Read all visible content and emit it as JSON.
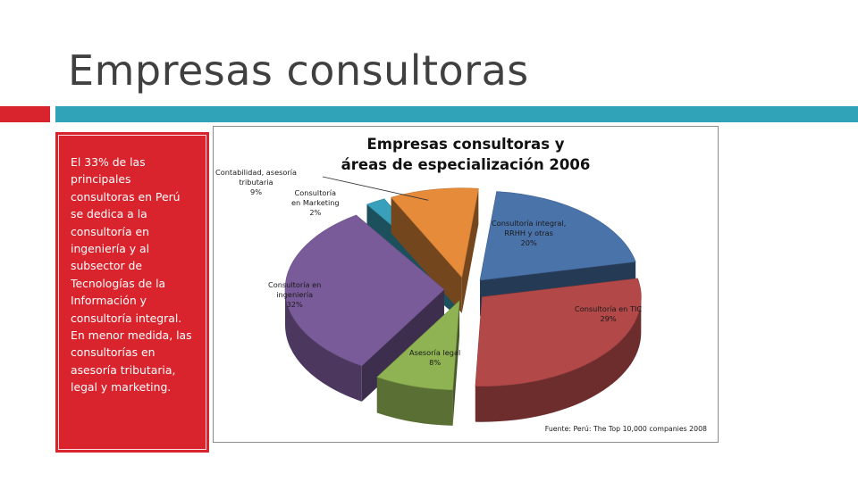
{
  "slide": {
    "title": "Empresas consultoras",
    "colors": {
      "red": "#d9242e",
      "teal": "#31a3b8"
    }
  },
  "sidebar": {
    "text": "El 33% de las principales consultoras en Perú se dedica a la consultoría en ingeniería y al subsector de Tecnologías de la Información y consultoría integral. En menor medida, las consultorías en asesoría tributaria, legal y marketing."
  },
  "chart_data": {
    "type": "pie",
    "style": "3d-exploded",
    "title": [
      "Empresas consultoras y",
      "áreas de especialización 2006"
    ],
    "source": "Fuente: Perú: The Top 10,000 companies 2008",
    "slices": [
      {
        "label": [
          "Consultoría integral,",
          "RRHH y otras"
        ],
        "pct_label": "20%",
        "value": 20,
        "color": "#4a73aa"
      },
      {
        "label": [
          "Consultoría en TIC"
        ],
        "pct_label": "29%",
        "value": 29,
        "color": "#b24848"
      },
      {
        "label": [
          "Asesoría legal"
        ],
        "pct_label": "8%",
        "value": 8,
        "color": "#8fb353"
      },
      {
        "label": [
          "Consultoría en",
          "ingeniería"
        ],
        "pct_label": "32%",
        "value": 32,
        "color": "#7a5b9a"
      },
      {
        "label": [
          "Consultoría",
          "en Marketing"
        ],
        "pct_label": "2%",
        "value": 2,
        "color": "#38a0ba"
      },
      {
        "label": [
          "Contabilidad, asesoría",
          "tributaria"
        ],
        "pct_label": "9%",
        "value": 9,
        "color": "#e68b3a"
      }
    ]
  }
}
